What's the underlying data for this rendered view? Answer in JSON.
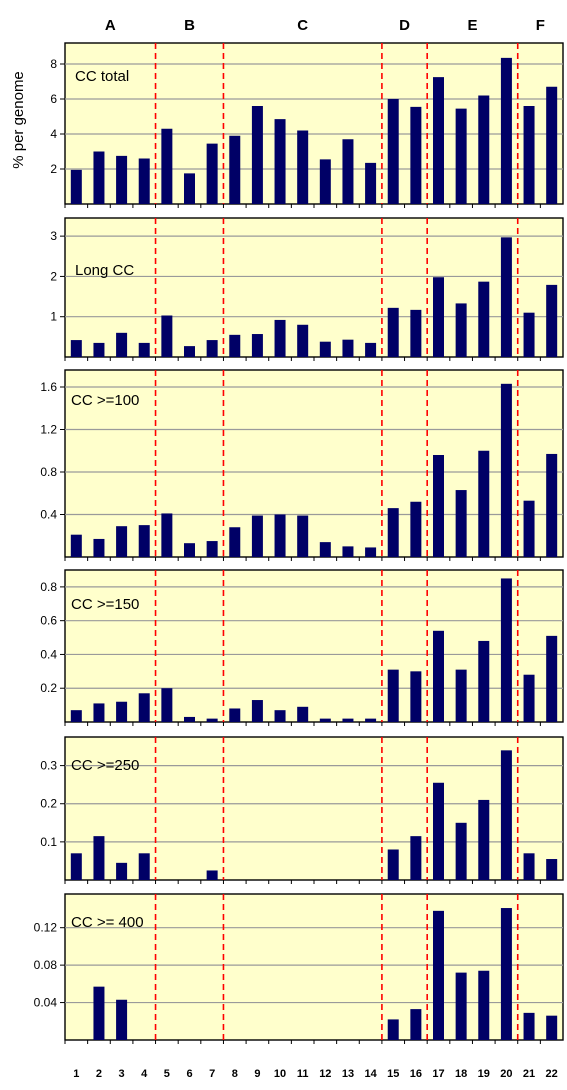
{
  "y_axis_title": "% per genome",
  "groups": [
    {
      "label": "A",
      "start": 1,
      "end": 4
    },
    {
      "label": "B",
      "start": 5,
      "end": 7
    },
    {
      "label": "C",
      "start": 8,
      "end": 14
    },
    {
      "label": "D",
      "start": 15,
      "end": 16
    },
    {
      "label": "E",
      "start": 17,
      "end": 20
    },
    {
      "label": "F",
      "start": 21,
      "end": 22
    }
  ],
  "colors": {
    "panel_bg": "#ffffcc",
    "bar": "#000066",
    "divider": "#ff0000",
    "grid": "#9a9a9a"
  },
  "chart_data": [
    {
      "type": "bar",
      "title": "CC total",
      "categories": [
        "1",
        "2",
        "3",
        "4",
        "5",
        "6",
        "7",
        "8",
        "9",
        "10",
        "11",
        "12",
        "13",
        "14",
        "15",
        "16",
        "17",
        "18",
        "19",
        "20",
        "21",
        "22"
      ],
      "values": [
        1.95,
        3.0,
        2.75,
        2.6,
        4.3,
        1.75,
        3.45,
        3.9,
        5.6,
        4.85,
        4.2,
        2.55,
        3.7,
        2.35,
        6.0,
        5.55,
        7.25,
        5.45,
        6.2,
        8.35,
        5.6,
        6.7
      ],
      "ylim": [
        0,
        9.2
      ],
      "yticks": [
        2,
        4,
        6,
        8
      ],
      "ytick_labels": [
        "2",
        "4",
        "6",
        "8"
      ],
      "grid": true
    },
    {
      "type": "bar",
      "title": "Long CC",
      "categories": [
        "1",
        "2",
        "3",
        "4",
        "5",
        "6",
        "7",
        "8",
        "9",
        "10",
        "11",
        "12",
        "13",
        "14",
        "15",
        "16",
        "17",
        "18",
        "19",
        "20",
        "21",
        "22"
      ],
      "values": [
        0.42,
        0.35,
        0.6,
        0.35,
        1.03,
        0.27,
        0.42,
        0.55,
        0.57,
        0.92,
        0.8,
        0.38,
        0.43,
        0.35,
        1.22,
        1.17,
        1.98,
        1.33,
        1.87,
        2.97,
        1.1,
        1.79
      ],
      "ylim": [
        0,
        3.45
      ],
      "yticks": [
        1,
        2,
        3
      ],
      "ytick_labels": [
        "1",
        "2",
        "3"
      ],
      "grid": true
    },
    {
      "type": "bar",
      "title": "CC >=100",
      "categories": [
        "1",
        "2",
        "3",
        "4",
        "5",
        "6",
        "7",
        "8",
        "9",
        "10",
        "11",
        "12",
        "13",
        "14",
        "15",
        "16",
        "17",
        "18",
        "19",
        "20",
        "21",
        "22"
      ],
      "values": [
        0.21,
        0.17,
        0.29,
        0.3,
        0.41,
        0.13,
        0.15,
        0.28,
        0.39,
        0.4,
        0.39,
        0.14,
        0.1,
        0.09,
        0.46,
        0.52,
        0.96,
        0.63,
        1.0,
        1.63,
        0.53,
        0.97
      ],
      "ylim": [
        0,
        1.76
      ],
      "yticks": [
        0.4,
        0.8,
        1.2,
        1.6
      ],
      "ytick_labels": [
        "0.4",
        "0.8",
        "1.2",
        "1.6"
      ],
      "grid": true
    },
    {
      "type": "bar",
      "title": "CC >=150",
      "categories": [
        "1",
        "2",
        "3",
        "4",
        "5",
        "6",
        "7",
        "8",
        "9",
        "10",
        "11",
        "12",
        "13",
        "14",
        "15",
        "16",
        "17",
        "18",
        "19",
        "20",
        "21",
        "22"
      ],
      "values": [
        0.07,
        0.11,
        0.12,
        0.17,
        0.2,
        0.03,
        0.02,
        0.08,
        0.13,
        0.07,
        0.09,
        0.02,
        0.02,
        0.02,
        0.31,
        0.3,
        0.54,
        0.31,
        0.48,
        0.85,
        0.28,
        0.51
      ],
      "ylim": [
        0,
        0.9
      ],
      "yticks": [
        0.2,
        0.4,
        0.6,
        0.8
      ],
      "ytick_labels": [
        "0.2",
        "0.4",
        "0.6",
        "0.8"
      ],
      "grid": true
    },
    {
      "type": "bar",
      "title": "CC >=250",
      "categories": [
        "1",
        "2",
        "3",
        "4",
        "5",
        "6",
        "7",
        "8",
        "9",
        "10",
        "11",
        "12",
        "13",
        "14",
        "15",
        "16",
        "17",
        "18",
        "19",
        "20",
        "21",
        "22"
      ],
      "values": [
        0.07,
        0.115,
        0.045,
        0.07,
        0,
        0,
        0.025,
        0,
        0,
        0,
        0,
        0,
        0,
        0,
        0.08,
        0.115,
        0.255,
        0.15,
        0.21,
        0.34,
        0.07,
        0.055
      ],
      "ylim": [
        0,
        0.375
      ],
      "yticks": [
        0.1,
        0.2,
        0.3
      ],
      "ytick_labels": [
        "0.1",
        "0.2",
        "0.3"
      ],
      "grid": true
    },
    {
      "type": "bar",
      "title": "CC >= 400",
      "categories": [
        "1",
        "2",
        "3",
        "4",
        "5",
        "6",
        "7",
        "8",
        "9",
        "10",
        "11",
        "12",
        "13",
        "14",
        "15",
        "16",
        "17",
        "18",
        "19",
        "20",
        "21",
        "22"
      ],
      "values": [
        0,
        0.057,
        0.043,
        0,
        0,
        0,
        0,
        0,
        0,
        0,
        0,
        0,
        0,
        0,
        0.022,
        0.033,
        0.138,
        0.072,
        0.074,
        0.141,
        0.029,
        0.026
      ],
      "ylim": [
        0,
        0.156
      ],
      "yticks": [
        0.04,
        0.08,
        0.12
      ],
      "ytick_labels": [
        "0.04",
        "0.08",
        "0.12"
      ],
      "grid": true
    }
  ]
}
